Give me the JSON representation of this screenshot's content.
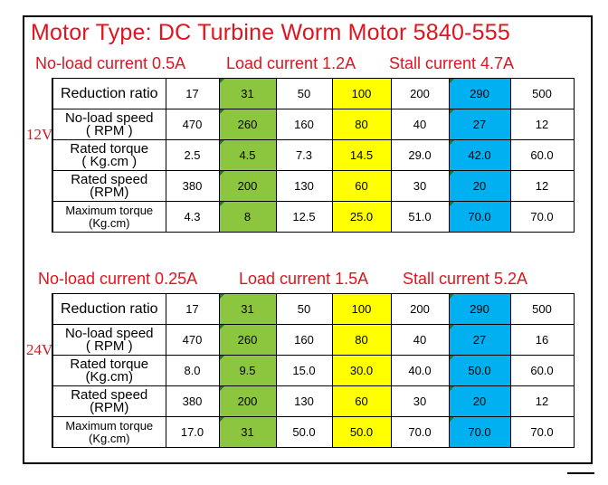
{
  "title": "Motor Type: DC Turbine Worm Motor 5840-555",
  "sections": [
    {
      "voltage": "12V",
      "no_load_current": "No-load current 0.5A",
      "load_current": "Load current 1.2A",
      "stall_current": "Stall current 4.7A",
      "rows": [
        {
          "label_1": "Reduction ratio",
          "label_2": "",
          "values": [
            "17",
            "31",
            "50",
            "100",
            "200",
            "290",
            "500"
          ]
        },
        {
          "label_1": "No-load speed",
          "label_2": "( RPM )",
          "values": [
            "470",
            "260",
            "160",
            "80",
            "40",
            "27",
            "12"
          ]
        },
        {
          "label_1": "Rated torque",
          "label_2": "( Kg.cm )",
          "values": [
            "2.5",
            "4.5",
            "7.3",
            "14.5",
            "29.0",
            "42.0",
            "60.0"
          ]
        },
        {
          "label_1": "Rated speed",
          "label_2": "(RPM)",
          "values": [
            "380",
            "200",
            "130",
            "60",
            "30",
            "20",
            "12"
          ]
        },
        {
          "label_1": "Maximum torque",
          "label_2": "(Kg.cm)",
          "values": [
            "4.3",
            "8",
            "12.5",
            "25.0",
            "51.0",
            "70.0",
            "70.0"
          ]
        }
      ]
    },
    {
      "voltage": "24V",
      "no_load_current": "No-load current 0.25A",
      "load_current": "Load current 1.5A",
      "stall_current": "Stall current 5.2A",
      "rows": [
        {
          "label_1": "Reduction ratio",
          "label_2": "",
          "values": [
            "17",
            "31",
            "50",
            "100",
            "200",
            "290",
            "500"
          ]
        },
        {
          "label_1": "No-load speed",
          "label_2": "( RPM )",
          "values": [
            "470",
            "260",
            "160",
            "80",
            "40",
            "27",
            "16"
          ]
        },
        {
          "label_1": "Rated torque",
          "label_2": "(Kg.cm)",
          "values": [
            "8.0",
            "9.5",
            "15.0",
            "30.0",
            "40.0",
            "50.0",
            "60.0"
          ]
        },
        {
          "label_1": "Rated speed",
          "label_2": "(RPM)",
          "values": [
            "380",
            "200",
            "130",
            "60",
            "30",
            "20",
            "12"
          ]
        },
        {
          "label_1": "Maximum torque",
          "label_2": "(Kg.cm)",
          "values": [
            "17.0",
            "31",
            "50.0",
            "50.0",
            "70.0",
            "70.0",
            "70.0"
          ]
        }
      ]
    }
  ],
  "highlight_colors": {
    "column_2": "#8cc63f",
    "column_4": "#ffff00",
    "column_6": "#00b0f0",
    "text_red": "#e0141e"
  }
}
